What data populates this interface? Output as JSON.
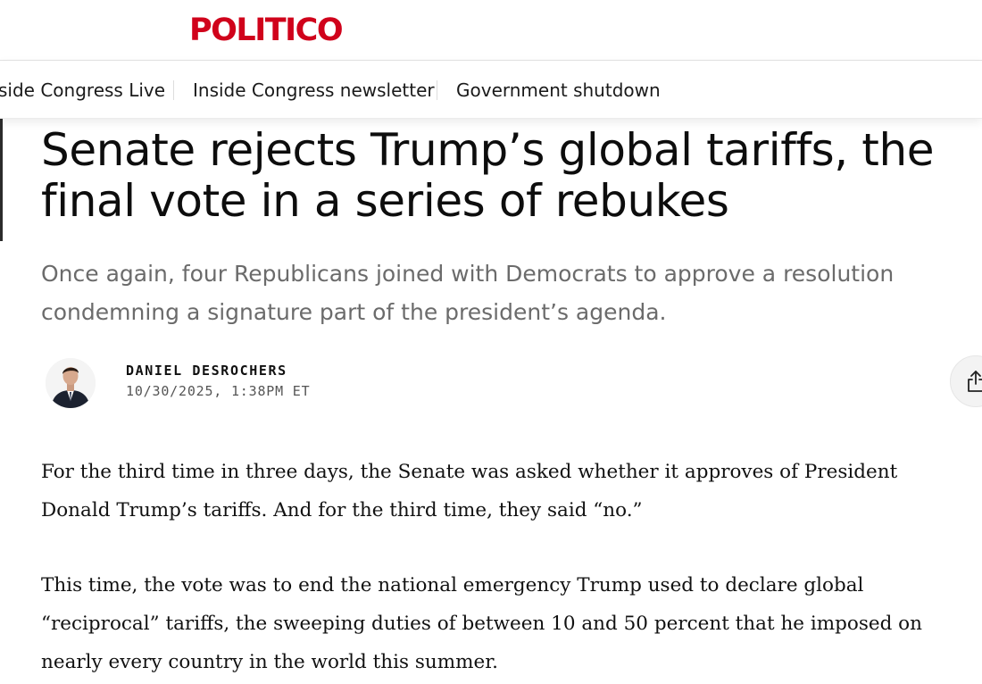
{
  "header": {
    "logo_text": "POLITICO",
    "brand_color": "#d0021b"
  },
  "subnav": {
    "items": [
      {
        "label": "side Congress Live"
      },
      {
        "label": "Inside Congress newsletter"
      },
      {
        "label": "Government shutdown"
      }
    ]
  },
  "article": {
    "headline": "Senate rejects Trump’s global tariffs, the final vote in a series of rebukes",
    "dek": "Once again, four Republicans joined with Democrats to approve a resolution condemning a signature part of the president’s agenda.",
    "author": "DANIEL DESROCHERS",
    "timestamp": "10/30/2025, 1:38PM ET",
    "share_icon": "share-icon",
    "paragraphs": [
      "For the third time in three days, the Senate was asked whether it approves of President Donald Trump’s tariffs. And for the third time, they said “no.”",
      "This time, the vote was to end the national emergency Trump used to declare global “reciprocal” tariffs, the sweeping duties of between 10 and 50 percent that he imposed on nearly every country in the world this summer."
    ]
  }
}
